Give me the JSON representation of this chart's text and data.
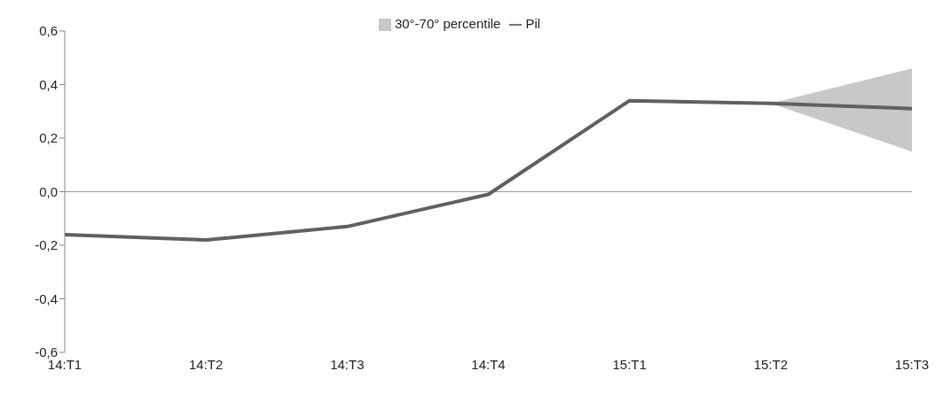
{
  "chart_data": {
    "type": "line",
    "categories": [
      "14:T1",
      "14:T2",
      "14:T3",
      "14:T4",
      "15:T1",
      "15:T2",
      "15:T3"
    ],
    "series": [
      {
        "name": "30°-70° percentile",
        "type": "area",
        "color": "#c8c8c8",
        "values": [
          null,
          null,
          null,
          null,
          null,
          null,
          null
        ],
        "lower": [
          null,
          null,
          null,
          null,
          null,
          0.33,
          0.15
        ],
        "upper": [
          null,
          null,
          null,
          null,
          null,
          0.33,
          0.46
        ]
      },
      {
        "name": "Pil",
        "color": "#606060",
        "values": [
          -0.16,
          -0.18,
          -0.13,
          -0.01,
          0.34,
          0.33,
          0.31
        ]
      }
    ],
    "ylim": [
      -0.6,
      0.6
    ],
    "yticks": [
      {
        "value": -0.6,
        "label": "-0,6"
      },
      {
        "value": -0.4,
        "label": "-0,4"
      },
      {
        "value": -0.2,
        "label": "-0,2"
      },
      {
        "value": 0,
        "label": "0,0"
      },
      {
        "value": 0.2,
        "label": "0,2"
      },
      {
        "value": 0.4,
        "label": "0,4"
      },
      {
        "value": 0.6,
        "label": "0,6"
      }
    ],
    "legend": "top",
    "marker": "none",
    "line_style": "solid"
  }
}
